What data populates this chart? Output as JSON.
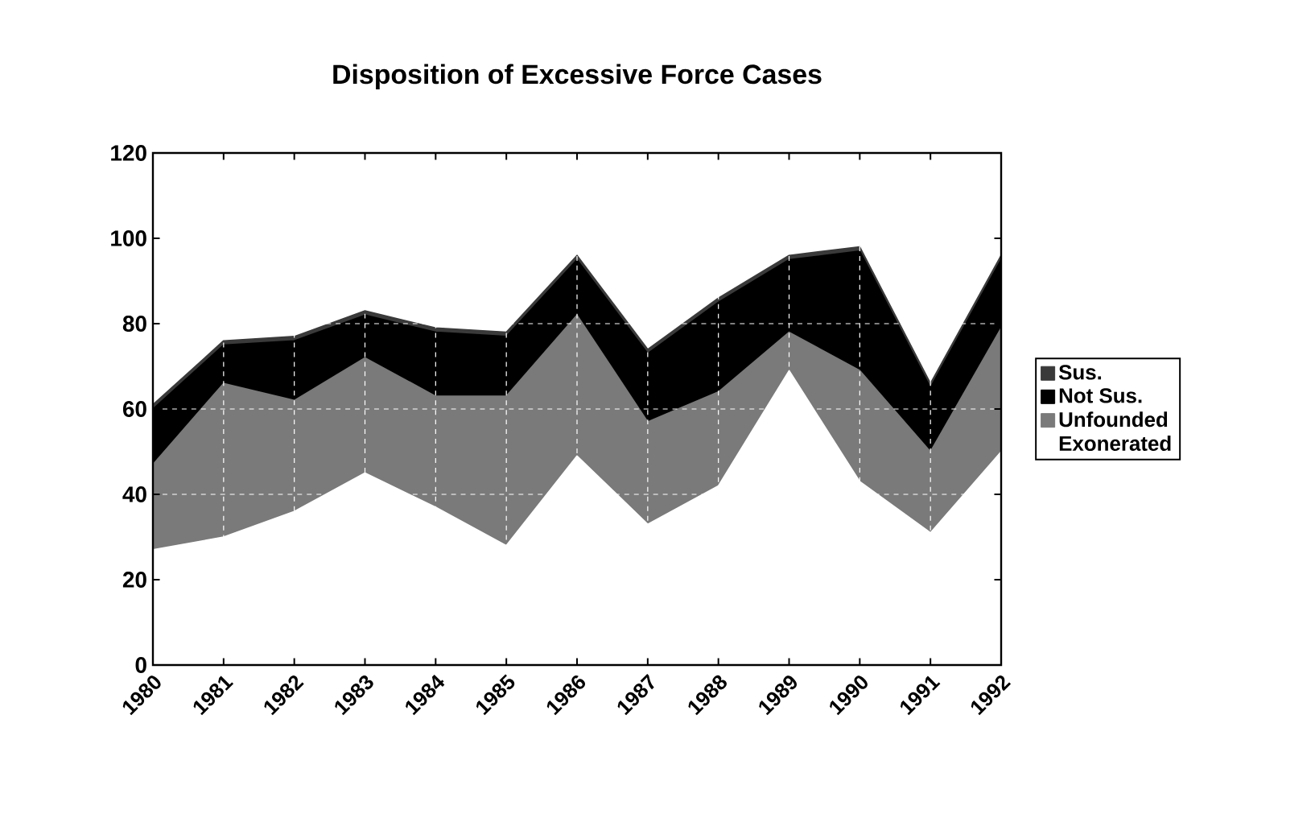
{
  "chart_data": {
    "type": "area",
    "stacked": true,
    "title": "Disposition of Excessive Force Cases",
    "categories": [
      "1980",
      "1981",
      "1982",
      "1983",
      "1984",
      "1985",
      "1986",
      "1987",
      "1988",
      "1989",
      "1990",
      "1991",
      "1992"
    ],
    "series": [
      {
        "name": "Exonerated",
        "color": "#ffffff",
        "values": [
          27,
          30,
          36,
          45,
          37,
          28,
          49,
          33,
          42,
          69,
          43,
          31,
          50
        ]
      },
      {
        "name": "Unfounded",
        "color": "#7a7a7a",
        "values": [
          20,
          36,
          26,
          27,
          26,
          35,
          33,
          24,
          22,
          9,
          26,
          19,
          29
        ]
      },
      {
        "name": "Not Sus.",
        "color": "#000000",
        "values": [
          13,
          9,
          14,
          10,
          15,
          14,
          13,
          16,
          21,
          17,
          28,
          15,
          16
        ]
      },
      {
        "name": "Sus.",
        "color": "#3a3a3a",
        "values": [
          1,
          1,
          1,
          1,
          1,
          1,
          1,
          1,
          1,
          1,
          1,
          1,
          1
        ]
      }
    ],
    "ylim": [
      0,
      120
    ],
    "yticks": [
      0,
      20,
      40,
      60,
      80,
      100,
      120
    ],
    "grid": true,
    "legend": "right"
  }
}
